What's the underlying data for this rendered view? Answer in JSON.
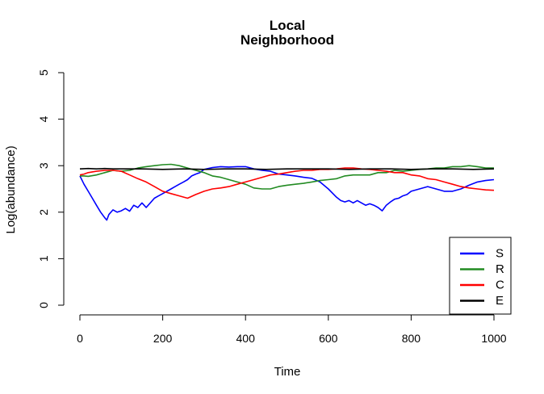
{
  "chart_data": {
    "type": "line",
    "title_lines": [
      "Local",
      "Neighborhood"
    ],
    "xlabel": "Time",
    "ylabel": "Log(abundance)",
    "xlim": [
      0,
      1000
    ],
    "ylim": [
      0,
      5
    ],
    "xticks": [
      "0",
      "200",
      "400",
      "600",
      "800",
      "1000"
    ],
    "yticks": [
      "0",
      "1",
      "2",
      "3",
      "4",
      "5"
    ],
    "grid": false,
    "legend_position": "bottom-right",
    "series": [
      {
        "name": "S",
        "color": "#0000ff",
        "x": [
          0,
          10,
          20,
          30,
          40,
          50,
          60,
          65,
          70,
          80,
          90,
          100,
          110,
          120,
          130,
          140,
          150,
          160,
          170,
          180,
          190,
          200,
          210,
          220,
          230,
          240,
          250,
          260,
          270,
          280,
          290,
          300,
          320,
          340,
          360,
          380,
          400,
          420,
          440,
          460,
          480,
          500,
          520,
          540,
          560,
          580,
          600,
          620,
          630,
          640,
          650,
          660,
          670,
          680,
          690,
          700,
          710,
          720,
          730,
          740,
          750,
          760,
          770,
          780,
          790,
          800,
          820,
          840,
          860,
          880,
          900,
          920,
          940,
          960,
          980,
          1000
        ],
        "y": [
          2.78,
          2.6,
          2.45,
          2.3,
          2.15,
          2.0,
          1.88,
          1.83,
          1.95,
          2.05,
          2.0,
          2.03,
          2.08,
          2.02,
          2.15,
          2.1,
          2.2,
          2.1,
          2.2,
          2.3,
          2.35,
          2.4,
          2.45,
          2.5,
          2.55,
          2.6,
          2.65,
          2.7,
          2.78,
          2.82,
          2.85,
          2.92,
          2.96,
          2.98,
          2.97,
          2.98,
          2.98,
          2.93,
          2.9,
          2.88,
          2.82,
          2.8,
          2.78,
          2.75,
          2.73,
          2.65,
          2.5,
          2.32,
          2.25,
          2.22,
          2.25,
          2.2,
          2.25,
          2.2,
          2.15,
          2.18,
          2.15,
          2.1,
          2.03,
          2.15,
          2.22,
          2.28,
          2.3,
          2.35,
          2.38,
          2.45,
          2.5,
          2.55,
          2.5,
          2.45,
          2.45,
          2.5,
          2.58,
          2.65,
          2.68,
          2.7
        ]
      },
      {
        "name": "R",
        "color": "#228b22",
        "x": [
          0,
          10,
          20,
          40,
          60,
          80,
          100,
          120,
          140,
          160,
          180,
          200,
          220,
          240,
          260,
          280,
          300,
          320,
          340,
          360,
          380,
          400,
          420,
          440,
          460,
          480,
          500,
          520,
          540,
          560,
          580,
          600,
          620,
          640,
          660,
          680,
          700,
          720,
          740,
          760,
          780,
          800,
          820,
          840,
          860,
          880,
          900,
          920,
          940,
          960,
          980,
          1000
        ],
        "y": [
          2.78,
          2.78,
          2.77,
          2.8,
          2.85,
          2.9,
          2.88,
          2.9,
          2.95,
          2.98,
          3.0,
          3.02,
          3.03,
          3.0,
          2.95,
          2.9,
          2.85,
          2.78,
          2.75,
          2.7,
          2.65,
          2.6,
          2.52,
          2.5,
          2.5,
          2.55,
          2.58,
          2.6,
          2.62,
          2.65,
          2.68,
          2.7,
          2.72,
          2.78,
          2.8,
          2.8,
          2.8,
          2.85,
          2.85,
          2.9,
          2.88,
          2.9,
          2.92,
          2.93,
          2.95,
          2.95,
          2.98,
          2.98,
          3.0,
          2.98,
          2.95,
          2.95
        ]
      },
      {
        "name": "C",
        "color": "#ff0000",
        "x": [
          0,
          10,
          20,
          40,
          60,
          80,
          100,
          120,
          140,
          160,
          180,
          200,
          220,
          240,
          260,
          280,
          300,
          320,
          340,
          360,
          380,
          400,
          420,
          440,
          460,
          480,
          500,
          520,
          540,
          560,
          580,
          600,
          620,
          640,
          660,
          680,
          700,
          720,
          740,
          760,
          780,
          800,
          820,
          840,
          860,
          880,
          900,
          920,
          940,
          960,
          980,
          1000
        ],
        "y": [
          2.8,
          2.82,
          2.85,
          2.88,
          2.9,
          2.9,
          2.88,
          2.8,
          2.72,
          2.65,
          2.55,
          2.45,
          2.4,
          2.35,
          2.3,
          2.38,
          2.45,
          2.5,
          2.52,
          2.55,
          2.6,
          2.65,
          2.7,
          2.75,
          2.8,
          2.82,
          2.85,
          2.88,
          2.9,
          2.9,
          2.92,
          2.92,
          2.93,
          2.95,
          2.95,
          2.93,
          2.92,
          2.9,
          2.88,
          2.85,
          2.85,
          2.8,
          2.78,
          2.72,
          2.7,
          2.65,
          2.6,
          2.55,
          2.52,
          2.5,
          2.48,
          2.47
        ]
      },
      {
        "name": "E",
        "color": "#000000",
        "x": [
          0,
          20,
          40,
          60,
          80,
          100,
          150,
          200,
          250,
          300,
          350,
          400,
          450,
          500,
          550,
          600,
          650,
          700,
          750,
          800,
          850,
          900,
          950,
          1000
        ],
        "y": [
          2.93,
          2.94,
          2.93,
          2.94,
          2.93,
          2.93,
          2.93,
          2.92,
          2.93,
          2.92,
          2.93,
          2.93,
          2.92,
          2.93,
          2.93,
          2.93,
          2.92,
          2.93,
          2.93,
          2.92,
          2.93,
          2.93,
          2.92,
          2.93
        ]
      }
    ]
  }
}
